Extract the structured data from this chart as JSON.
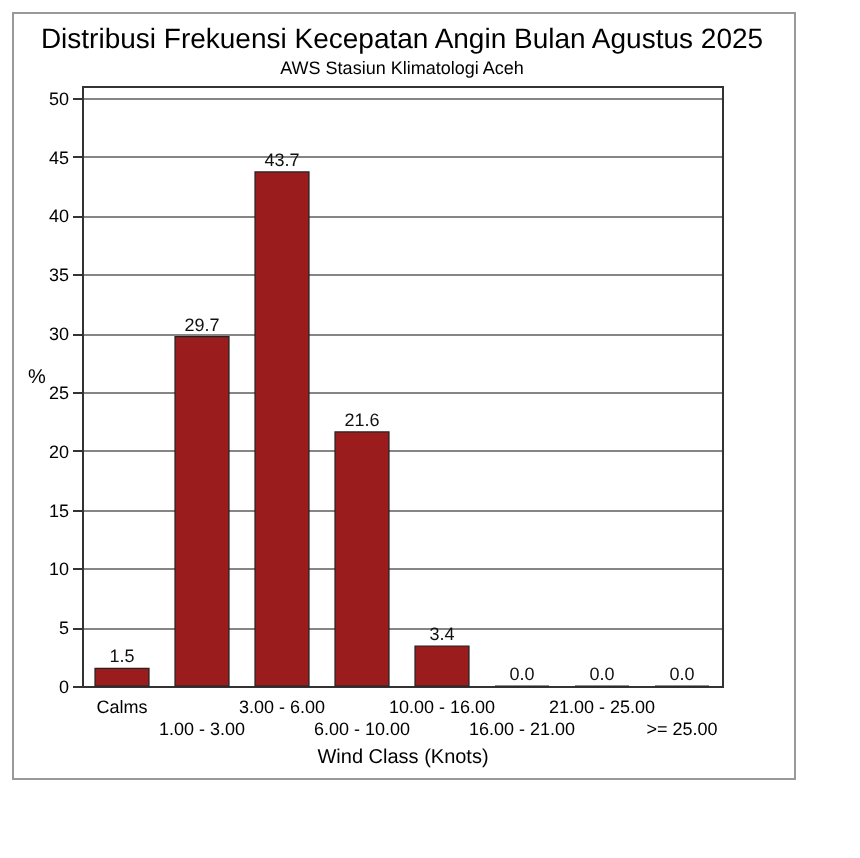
{
  "chart_data": {
    "type": "bar",
    "title": "Distribusi Frekuensi Kecepatan Angin Bulan Agustus 2025",
    "subtitle": "AWS Stasiun Klimatologi Aceh",
    "xlabel": "Wind Class (Knots)",
    "ylabel": "%",
    "categories": [
      "Calms",
      "1.00 - 3.00",
      "3.00 - 6.00",
      "6.00 - 10.00",
      "10.00 - 16.00",
      "16.00 - 21.00",
      "21.00 - 25.00",
      ">= 25.00"
    ],
    "values": [
      1.5,
      29.7,
      43.7,
      21.6,
      3.4,
      0.0,
      0.0,
      0.0
    ],
    "color": "#9b1c1c",
    "ylim": [
      0,
      51
    ],
    "yticks": [
      0,
      5,
      10,
      15,
      20,
      25,
      30,
      35,
      40,
      45,
      50
    ],
    "value_labels": [
      "1.5",
      "29.7",
      "43.7",
      "21.6",
      "3.4",
      "0.0",
      "0.0",
      "0.0"
    ],
    "grid": "y"
  }
}
